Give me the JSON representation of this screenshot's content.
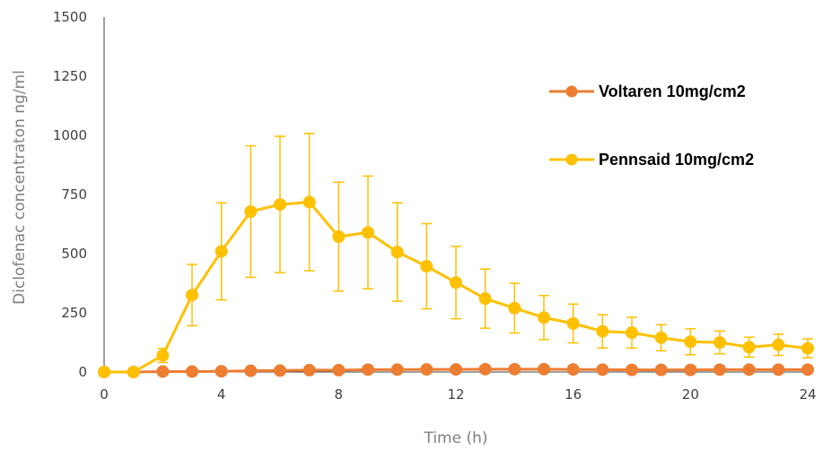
{
  "chart_data": {
    "type": "line",
    "xlabel": "Time (h)",
    "ylabel": "Diclofenac concentraton ng/ml",
    "xlim": [
      0,
      24
    ],
    "ylim": [
      0,
      1500
    ],
    "x_ticks": [
      0,
      4,
      8,
      12,
      16,
      20,
      24
    ],
    "y_ticks": [
      0,
      250,
      500,
      750,
      1000,
      1250,
      1500
    ],
    "grid": false,
    "legend_position": "right",
    "x": [
      0,
      1,
      2,
      3,
      4,
      5,
      6,
      7,
      8,
      9,
      10,
      11,
      12,
      13,
      14,
      15,
      16,
      17,
      18,
      19,
      20,
      21,
      22,
      23,
      24
    ],
    "series": [
      {
        "name": "Voltaren 10mg/cm2",
        "color": "#ed7d31",
        "values": [
          0,
          0,
          2,
          2,
          3,
          5,
          6,
          8,
          8,
          10,
          10,
          11,
          11,
          12,
          12,
          12,
          11,
          10,
          9,
          9,
          9,
          10,
          10,
          10,
          10
        ],
        "error": [
          0,
          0,
          0,
          0,
          0,
          0,
          0,
          0,
          0,
          0,
          0,
          0,
          0,
          0,
          0,
          0,
          0,
          0,
          0,
          0,
          0,
          0,
          0,
          0,
          0
        ]
      },
      {
        "name": "Pennsaid 10mg/cm2",
        "color": "#ffc000",
        "values": [
          0,
          0,
          70,
          325,
          510,
          678,
          708,
          718,
          572,
          590,
          507,
          447,
          378,
          310,
          270,
          230,
          205,
          172,
          166,
          145,
          128,
          125,
          105,
          115,
          100
        ],
        "error": [
          0,
          0,
          30,
          130,
          205,
          278,
          288,
          290,
          230,
          238,
          208,
          180,
          153,
          125,
          105,
          93,
          82,
          70,
          65,
          55,
          55,
          48,
          42,
          45,
          40
        ]
      }
    ]
  }
}
